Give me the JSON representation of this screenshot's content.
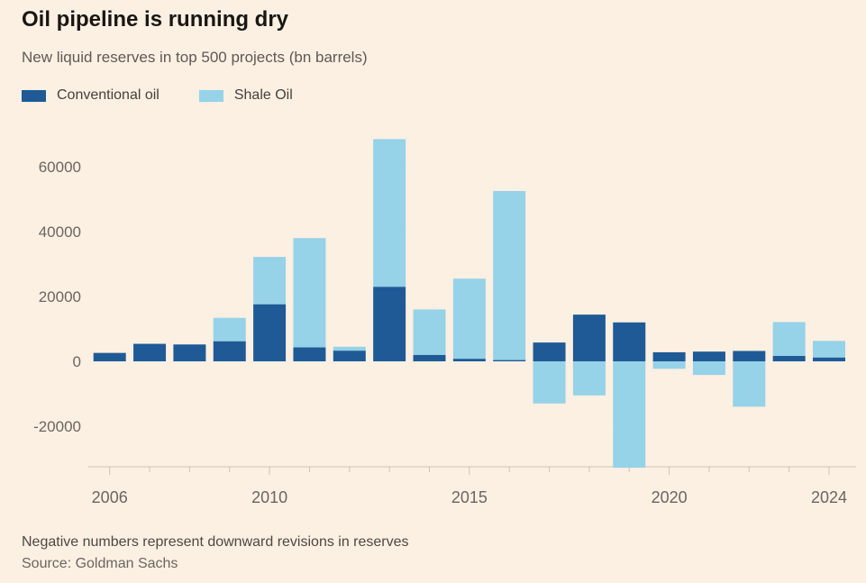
{
  "header": {
    "title": "Oil pipeline is running dry",
    "subtitle": "New liquid reserves in top 500 projects (bn barrels)"
  },
  "legend": {
    "items": [
      {
        "label": "Conventional oil",
        "color": "#1F5A96"
      },
      {
        "label": "Shale Oil",
        "color": "#96D2E8"
      }
    ]
  },
  "chart_data": {
    "type": "bar",
    "stacked": true,
    "title": "Oil pipeline is running dry",
    "subtitle": "New liquid reserves in top 500 projects (bn barrels)",
    "categories": [
      2006,
      2007,
      2008,
      2009,
      2010,
      2011,
      2012,
      2013,
      2014,
      2015,
      2016,
      2017,
      2018,
      2019,
      2020,
      2021,
      2022,
      2023,
      2024
    ],
    "series": [
      {
        "name": "Conventional oil",
        "color": "#1F5A96",
        "values": [
          2600,
          5400,
          5200,
          6200,
          17600,
          4300,
          3300,
          23000,
          2000,
          800,
          400,
          5800,
          14400,
          12000,
          2800,
          3000,
          3200,
          1700,
          1200
        ]
      },
      {
        "name": "Shale Oil",
        "color": "#96D2E8",
        "values": [
          0,
          0,
          0,
          7200,
          14600,
          33700,
          1200,
          45500,
          14000,
          24700,
          52100,
          -13000,
          -10500,
          -32800,
          -2300,
          -4200,
          -14000,
          10400,
          5100
        ]
      }
    ],
    "xlabel": "",
    "ylabel": "",
    "ylim": [
      -33000,
      68500
    ],
    "yticks": [
      60000,
      40000,
      20000,
      0,
      -20000
    ],
    "xtick_labels": [
      2006,
      2010,
      2015,
      2020,
      2024
    ],
    "grid": true,
    "legend_position": "top",
    "colors": {
      "background": "#FCF0E3",
      "gridline": "#F9F1E8",
      "axis": "#CFC3B6",
      "tick_text": "#6B6560"
    }
  },
  "footer": {
    "note": "Negative numbers represent downward revisions in reserves",
    "source": "Source: Goldman Sachs"
  }
}
